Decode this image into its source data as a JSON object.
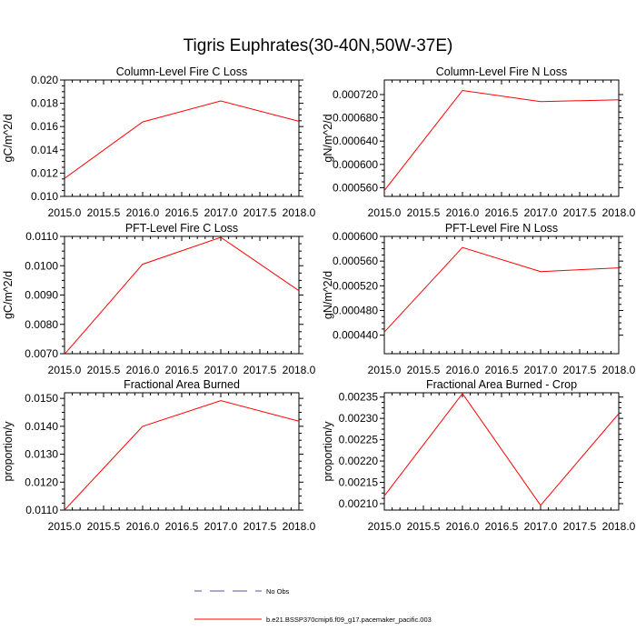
{
  "figure": {
    "title": "Tigris Euphrates(30-40N,50W-37E)",
    "line_color": "#ff0000",
    "obs_color": "#5a4fa0"
  },
  "legend": {
    "items": [
      {
        "label": "No Obs",
        "style": "dashed"
      },
      {
        "label": "b.e21.BSSP370cmip6.f09_g17.pacemaker_pacific.003",
        "style": "solid"
      }
    ]
  },
  "chart_data": [
    {
      "type": "line",
      "title": "Column-Level Fire C Loss",
      "ylabel": "gC/m^2/d",
      "x": [
        2015.0,
        2016.0,
        2017.0,
        2018.0
      ],
      "xlim": [
        2015.0,
        2018.0
      ],
      "xticks": [
        "2015.0",
        "2015.5",
        "2016.0",
        "2016.5",
        "2017.0",
        "2017.5",
        "2018.0"
      ],
      "ylim": [
        0.01,
        0.02
      ],
      "yticks": [
        "0.010",
        "0.012",
        "0.014",
        "0.016",
        "0.018",
        "0.020"
      ],
      "series": [
        {
          "values": [
            0.01155,
            0.0164,
            0.0182,
            0.01645
          ]
        }
      ]
    },
    {
      "type": "line",
      "title": "Column-Level Fire N Loss",
      "ylabel": "gN/m^2/d",
      "x": [
        2015.0,
        2016.0,
        2017.0,
        2018.0
      ],
      "xlim": [
        2015.0,
        2018.0
      ],
      "xticks": [
        "2015.0",
        "2015.5",
        "2016.0",
        "2016.5",
        "2017.0",
        "2017.5",
        "2018.0"
      ],
      "ylim": [
        0.000545,
        0.000745
      ],
      "yticks": [
        "0.000560",
        "0.000600",
        "0.000640",
        "0.000680",
        "0.000720"
      ],
      "series": [
        {
          "values": [
            0.000555,
            0.000727,
            0.000708,
            0.000711
          ]
        }
      ]
    },
    {
      "type": "line",
      "title": "PFT-Level Fire C Loss",
      "ylabel": "gC/m^2/d",
      "x": [
        2015.0,
        2016.0,
        2017.0,
        2018.0
      ],
      "xlim": [
        2015.0,
        2018.0
      ],
      "xticks": [
        "2015.0",
        "2015.5",
        "2016.0",
        "2016.5",
        "2017.0",
        "2017.5",
        "2018.0"
      ],
      "ylim": [
        0.007,
        0.011
      ],
      "yticks": [
        "0.0070",
        "0.0080",
        "0.0090",
        "0.0100",
        "0.0110"
      ],
      "series": [
        {
          "values": [
            0.00698,
            0.01005,
            0.01097,
            0.00915
          ]
        }
      ]
    },
    {
      "type": "line",
      "title": "PFT-Level Fire N Loss",
      "ylabel": "gN/m^2/d",
      "x": [
        2015.0,
        2016.0,
        2017.0,
        2018.0
      ],
      "xlim": [
        2015.0,
        2018.0
      ],
      "xticks": [
        "2015.0",
        "2015.5",
        "2016.0",
        "2016.5",
        "2017.0",
        "2017.5",
        "2018.0"
      ],
      "ylim": [
        0.00041,
        0.0006
      ],
      "yticks": [
        "0.000440",
        "0.000480",
        "0.000520",
        "0.000560",
        "0.000600"
      ],
      "series": [
        {
          "values": [
            0.000445,
            0.000582,
            0.000543,
            0.000549
          ]
        }
      ]
    },
    {
      "type": "line",
      "title": "Fractional Area Burned",
      "ylabel": "proportion/y",
      "x": [
        2015.0,
        2016.0,
        2017.0,
        2018.0
      ],
      "xlim": [
        2015.0,
        2018.0
      ],
      "xticks": [
        "2015.0",
        "2015.5",
        "2016.0",
        "2016.5",
        "2017.0",
        "2017.5",
        "2018.0"
      ],
      "ylim": [
        0.011,
        0.0152
      ],
      "yticks": [
        "0.0110",
        "0.0120",
        "0.0130",
        "0.0140",
        "0.0150"
      ],
      "series": [
        {
          "values": [
            0.011,
            0.014,
            0.01492,
            0.01418
          ]
        }
      ]
    },
    {
      "type": "line",
      "title": "Fractional Area Burned - Crop",
      "ylabel": "proportion/y",
      "x": [
        2015.0,
        2016.0,
        2017.0,
        2018.0
      ],
      "xlim": [
        2015.0,
        2018.0
      ],
      "xticks": [
        "2015.0",
        "2015.5",
        "2016.0",
        "2016.5",
        "2017.0",
        "2017.5",
        "2018.0"
      ],
      "ylim": [
        0.002085,
        0.00236
      ],
      "yticks": [
        "0.00210",
        "0.00215",
        "0.00220",
        "0.00225",
        "0.00230",
        "0.00235"
      ],
      "series": [
        {
          "values": [
            0.002118,
            0.002358,
            0.002096,
            0.002311
          ]
        }
      ]
    }
  ]
}
